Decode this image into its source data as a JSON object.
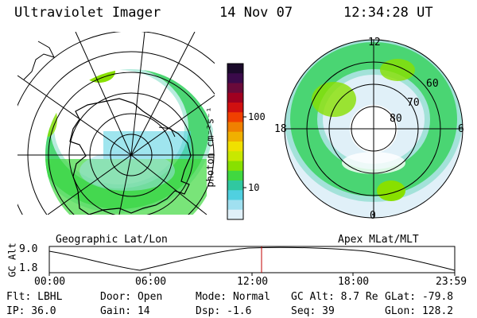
{
  "header": {
    "instrument": "Ultraviolet Imager",
    "date": "14 Nov 07",
    "time": "12:34:28 UT"
  },
  "left_map": {
    "label": "Geographic Lat/Lon"
  },
  "right_map": {
    "label": "Apex MLat/MLT",
    "mlt_labels": {
      "top": "12",
      "bottom": "0",
      "left": "18",
      "right": "6"
    },
    "mlat_labels": [
      "60",
      "70",
      "80"
    ]
  },
  "colorbar": {
    "label": "photon cm⁻²s⁻¹",
    "ticks": [
      "100",
      "10"
    ],
    "scale": "log"
  },
  "altitude_plot": {
    "ylabel": "GC Alt",
    "yticks": [
      "9.0",
      "1.8"
    ],
    "xticks": [
      "00:00",
      "06:00",
      "12:00",
      "18:00",
      "23:59"
    ],
    "marker_time": "12:34",
    "marker_color": "#c00000"
  },
  "footer": {
    "flt": "Flt: LBHL",
    "ip": "IP: 36.0",
    "door": "Door: Open",
    "gain": "Gain: 14",
    "mode": "Mode: Normal",
    "dsp": "Dsp:   -1.6",
    "gcalt": "GC Alt: 8.7 Re",
    "seq": "Seq: 39",
    "glat": "GLat: -79.8",
    "glon": "GLon: 128.2"
  },
  "palette": [
    "#1a0a2a",
    "#3a0a4a",
    "#6a0a3a",
    "#a00020",
    "#d01010",
    "#f04000",
    "#f08000",
    "#f0b000",
    "#f0e000",
    "#c8e800",
    "#88e000",
    "#40d840",
    "#30c8a0",
    "#50d0e0",
    "#a0e0f0",
    "#e0f0f8"
  ]
}
